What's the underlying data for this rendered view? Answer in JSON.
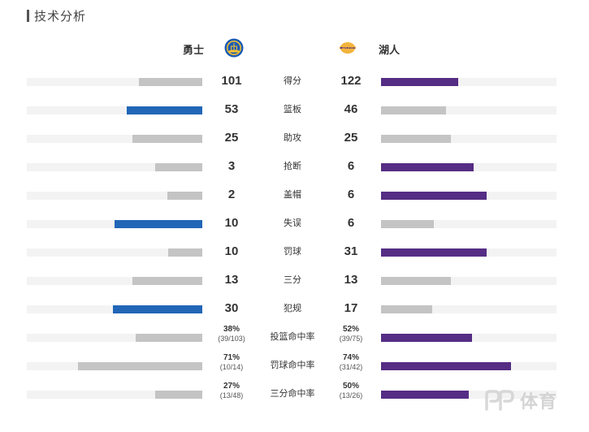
{
  "section": {
    "title": "技术分析"
  },
  "teams": {
    "left": {
      "name": "勇士",
      "logo_icon": "warriors-logo-icon",
      "lead_color": "#2166b7"
    },
    "right": {
      "name": "湖人",
      "logo_icon": "lakers-logo-icon",
      "lead_color": "#552d84"
    },
    "trail_color": "#c4c4c4",
    "track_color": "#f3f3f3"
  },
  "stats": [
    {
      "label": "得分",
      "left": "101",
      "right": "122",
      "left_fraction": 0.36,
      "right_fraction": 0.44,
      "leader": "right"
    },
    {
      "label": "篮板",
      "left": "53",
      "right": "46",
      "left_fraction": 0.43,
      "right_fraction": 0.37,
      "leader": "left"
    },
    {
      "label": "助攻",
      "left": "25",
      "right": "25",
      "left_fraction": 0.4,
      "right_fraction": 0.4,
      "leader": "none"
    },
    {
      "label": "抢断",
      "left": "3",
      "right": "6",
      "left_fraction": 0.27,
      "right_fraction": 0.53,
      "leader": "right"
    },
    {
      "label": "盖帽",
      "left": "2",
      "right": "6",
      "left_fraction": 0.2,
      "right_fraction": 0.6,
      "leader": "right"
    },
    {
      "label": "失误",
      "left": "10",
      "right": "6",
      "left_fraction": 0.5,
      "right_fraction": 0.3,
      "leader": "left"
    },
    {
      "label": "罚球",
      "left": "10",
      "right": "31",
      "left_fraction": 0.195,
      "right_fraction": 0.6,
      "leader": "right"
    },
    {
      "label": "三分",
      "left": "13",
      "right": "13",
      "left_fraction": 0.4,
      "right_fraction": 0.4,
      "leader": "none"
    },
    {
      "label": "犯规",
      "left": "30",
      "right": "17",
      "left_fraction": 0.51,
      "right_fraction": 0.29,
      "leader": "left"
    },
    {
      "label": "投篮命中率",
      "left": "38%",
      "left_sub": "(39/103)",
      "right": "52%",
      "right_sub": "(39/75)",
      "left_fraction": 0.38,
      "right_fraction": 0.52,
      "leader": "right"
    },
    {
      "label": "罚球命中率",
      "left": "71%",
      "left_sub": "(10/14)",
      "right": "74%",
      "right_sub": "(31/42)",
      "left_fraction": 0.71,
      "right_fraction": 0.74,
      "leader": "right"
    },
    {
      "label": "三分命中率",
      "left": "27%",
      "left_sub": "(13/48)",
      "right": "50%",
      "right_sub": "(13/26)",
      "left_fraction": 0.27,
      "right_fraction": 0.5,
      "leader": "right"
    }
  ],
  "watermark": {
    "text": "体育",
    "icon": "pp-logo-icon"
  }
}
